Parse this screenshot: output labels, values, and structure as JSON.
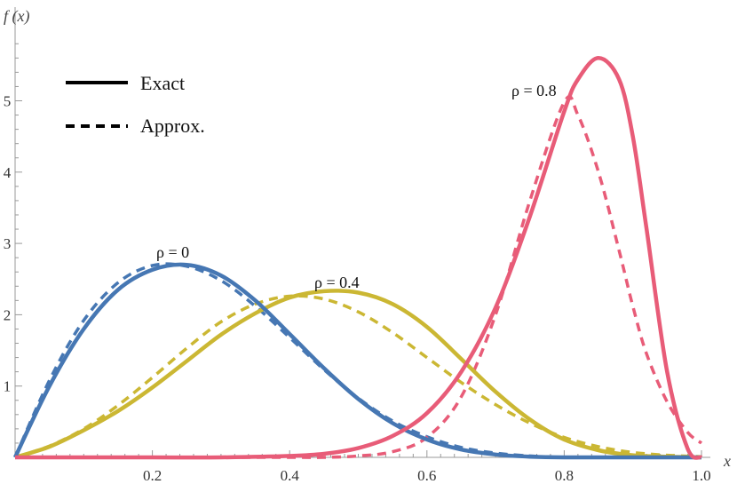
{
  "chart_data": {
    "type": "line",
    "xlabel": "x",
    "ylabel": "f (x)",
    "xlim": [
      0,
      1
    ],
    "ylim": [
      0,
      5.8
    ],
    "x_ticks": [
      0.2,
      0.4,
      0.6,
      0.8,
      1.0
    ],
    "x_tick_labels": [
      "0.2",
      "0.4",
      "0.6",
      "0.8",
      "1.0"
    ],
    "y_ticks": [
      1,
      2,
      3,
      4,
      5
    ],
    "y_tick_labels": [
      "1",
      "2",
      "3",
      "4",
      "5"
    ],
    "grid": false,
    "legend_position": "top-left",
    "legend": [
      {
        "label": "Exact",
        "style": "solid"
      },
      {
        "label": "Approx.",
        "style": "dashed"
      }
    ],
    "annotations": [
      {
        "text": "ρ = 0",
        "series": "rho0"
      },
      {
        "text": "ρ = 0.4",
        "series": "rho04"
      },
      {
        "text": "ρ = 0.8",
        "series": "rho08"
      }
    ],
    "series": [
      {
        "id": "rho0-exact",
        "group": "rho0",
        "style": "solid",
        "color": "#4677b3",
        "x": [
          0,
          0.05,
          0.1,
          0.15,
          0.2,
          0.25,
          0.3,
          0.35,
          0.4,
          0.45,
          0.5,
          0.55,
          0.6,
          0.65,
          0.7,
          0.75,
          0.8,
          0.85,
          0.9,
          0.95,
          1.0
        ],
        "y": [
          0,
          1.0,
          1.8,
          2.35,
          2.63,
          2.7,
          2.55,
          2.2,
          1.73,
          1.25,
          0.82,
          0.48,
          0.25,
          0.11,
          0.04,
          0.01,
          0,
          0,
          0,
          0,
          0
        ]
      },
      {
        "id": "rho0-approx",
        "group": "rho0",
        "style": "dashed",
        "color": "#4677b3",
        "x": [
          0,
          0.05,
          0.1,
          0.15,
          0.2,
          0.25,
          0.3,
          0.35,
          0.4,
          0.45,
          0.5,
          0.55,
          0.6,
          0.65,
          0.7,
          0.75,
          0.8,
          0.85,
          0.9,
          0.95,
          1.0
        ],
        "y": [
          0,
          1.08,
          1.92,
          2.45,
          2.69,
          2.68,
          2.48,
          2.12,
          1.68,
          1.23,
          0.83,
          0.51,
          0.29,
          0.14,
          0.06,
          0.02,
          0,
          0,
          0,
          0,
          0
        ]
      },
      {
        "id": "rho04-exact",
        "group": "rho04",
        "style": "solid",
        "color": "#cbb733",
        "x": [
          0,
          0.05,
          0.1,
          0.15,
          0.2,
          0.25,
          0.3,
          0.35,
          0.4,
          0.45,
          0.5,
          0.55,
          0.6,
          0.65,
          0.7,
          0.75,
          0.8,
          0.85,
          0.9,
          0.95,
          1.0
        ],
        "y": [
          0,
          0.15,
          0.38,
          0.65,
          0.98,
          1.35,
          1.72,
          2.02,
          2.24,
          2.33,
          2.31,
          2.15,
          1.83,
          1.38,
          0.92,
          0.53,
          0.25,
          0.1,
          0.03,
          0.01,
          0
        ]
      },
      {
        "id": "rho04-approx",
        "group": "rho04",
        "style": "dashed",
        "color": "#cbb733",
        "x": [
          0,
          0.05,
          0.1,
          0.15,
          0.2,
          0.25,
          0.3,
          0.35,
          0.4,
          0.45,
          0.5,
          0.55,
          0.6,
          0.65,
          0.7,
          0.75,
          0.8,
          0.85,
          0.9,
          0.95,
          1.0
        ],
        "y": [
          0,
          0.16,
          0.4,
          0.73,
          1.12,
          1.53,
          1.9,
          2.15,
          2.26,
          2.22,
          2.04,
          1.75,
          1.4,
          1.05,
          0.74,
          0.48,
          0.28,
          0.15,
          0.07,
          0.03,
          0.01
        ]
      },
      {
        "id": "rho08-exact",
        "group": "rho08",
        "style": "solid",
        "color": "#e85c78",
        "x": [
          0,
          0.1,
          0.2,
          0.3,
          0.4,
          0.45,
          0.5,
          0.55,
          0.6,
          0.65,
          0.7,
          0.75,
          0.8,
          0.82,
          0.85,
          0.88,
          0.9,
          0.92,
          0.95,
          0.98,
          1.0
        ],
        "y": [
          0,
          0,
          0,
          0,
          0.02,
          0.05,
          0.13,
          0.3,
          0.62,
          1.2,
          2.1,
          3.38,
          4.85,
          5.3,
          5.6,
          5.3,
          4.5,
          3.2,
          1.2,
          0.12,
          0
        ]
      },
      {
        "id": "rho08-approx",
        "group": "rho08",
        "style": "dashed",
        "color": "#e85c78",
        "x": [
          0,
          0.1,
          0.2,
          0.3,
          0.4,
          0.45,
          0.5,
          0.55,
          0.6,
          0.65,
          0.7,
          0.75,
          0.8,
          0.82,
          0.85,
          0.88,
          0.9,
          0.92,
          0.95,
          0.98,
          1.0
        ],
        "y": [
          0,
          0,
          0,
          0,
          0,
          0,
          0.02,
          0.08,
          0.28,
          0.85,
          2.0,
          3.6,
          4.98,
          4.8,
          4.0,
          2.9,
          2.12,
          1.45,
          0.78,
          0.35,
          0.2
        ]
      }
    ]
  }
}
